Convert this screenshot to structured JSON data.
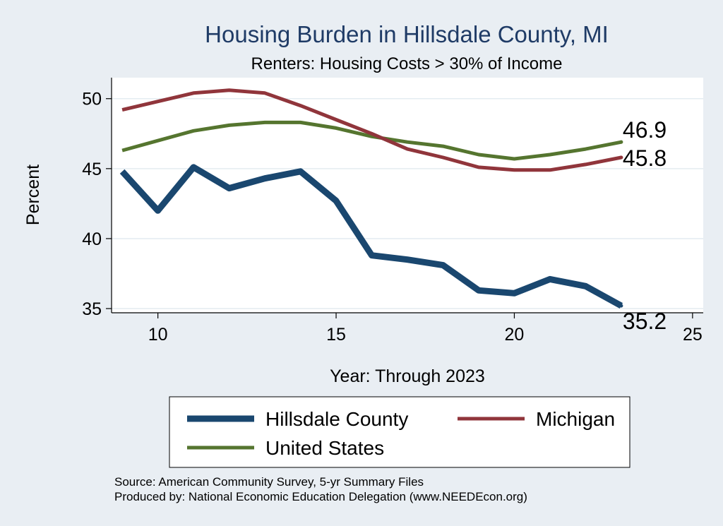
{
  "colors": {
    "background": "#e9eef3",
    "plot_background": "#ffffff",
    "grid": "#e4ecf1",
    "title": "#1f3b66"
  },
  "chart_data": {
    "type": "line",
    "title": "Housing Burden in Hillsdale County, MI",
    "subtitle": "Renters: Housing Costs > 30% of Income",
    "xlabel": "Year: Through 2023",
    "ylabel": "Percent",
    "xlim": [
      8.7,
      25.3
    ],
    "ylim": [
      34.7,
      51.5
    ],
    "x_ticks": [
      10,
      15,
      20,
      25
    ],
    "y_ticks": [
      35,
      40,
      45,
      50
    ],
    "grid": true,
    "legend_position": "bottom",
    "x": [
      9,
      10,
      11,
      12,
      13,
      14,
      15,
      16,
      17,
      18,
      19,
      20,
      21,
      22,
      23
    ],
    "series": [
      {
        "name": "Hillsdale County",
        "color": "#1a476f",
        "width": 9,
        "values": [
          44.8,
          42.0,
          45.1,
          43.6,
          44.3,
          44.8,
          42.7,
          38.8,
          38.5,
          38.1,
          36.3,
          36.1,
          37.1,
          36.6,
          35.2
        ],
        "end_label": "35.2",
        "end_label_position": "below"
      },
      {
        "name": "Michigan",
        "color": "#90353b",
        "width": 5,
        "values": [
          49.2,
          49.8,
          50.4,
          50.6,
          50.4,
          49.5,
          48.5,
          47.5,
          46.4,
          45.8,
          45.1,
          44.9,
          44.9,
          45.3,
          45.8
        ],
        "end_label": "45.8",
        "end_label_position": "right"
      },
      {
        "name": "United States",
        "color": "#55752f",
        "width": 5,
        "values": [
          46.3,
          47.0,
          47.7,
          48.1,
          48.3,
          48.3,
          47.9,
          47.3,
          46.9,
          46.6,
          46.0,
          45.7,
          46.0,
          46.4,
          46.9
        ],
        "end_label": "46.9",
        "end_label_position": "above"
      }
    ]
  },
  "notes": {
    "source": "Source: American Community Survey, 5-yr Summary Files",
    "produced_by": "Produced by: National Economic Education Delegation (www.NEEDEcon.org)"
  }
}
